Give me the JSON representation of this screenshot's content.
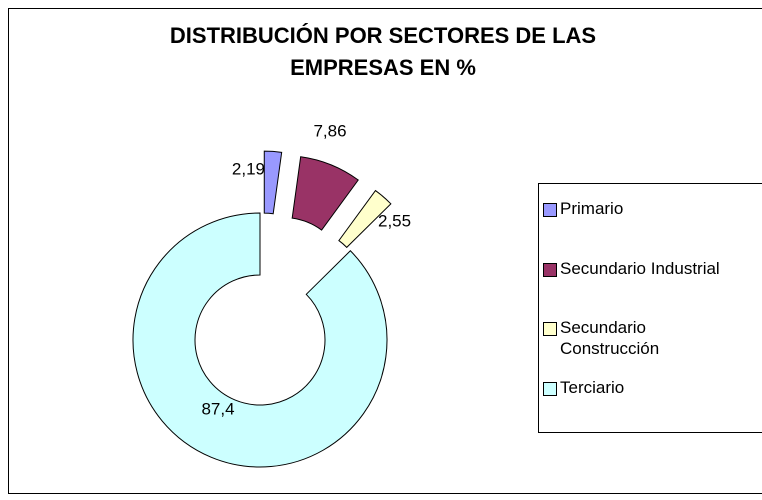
{
  "chart_data": {
    "type": "doughnut",
    "title": "DISTRIBUCIÓN POR SECTORES DE LAS EMPRESAS EN %",
    "categories": [
      "Primario",
      "Secundario Industrial",
      "Secundario Construcción",
      "Terciario"
    ],
    "values": [
      2.19,
      7.86,
      2.55,
      87.4
    ],
    "value_labels": [
      "2,19",
      "7,86",
      "2,55",
      "87,4"
    ],
    "colors": [
      "#9999ff",
      "#993366",
      "#ffffcc",
      "#ccffff"
    ],
    "legend": "right"
  }
}
